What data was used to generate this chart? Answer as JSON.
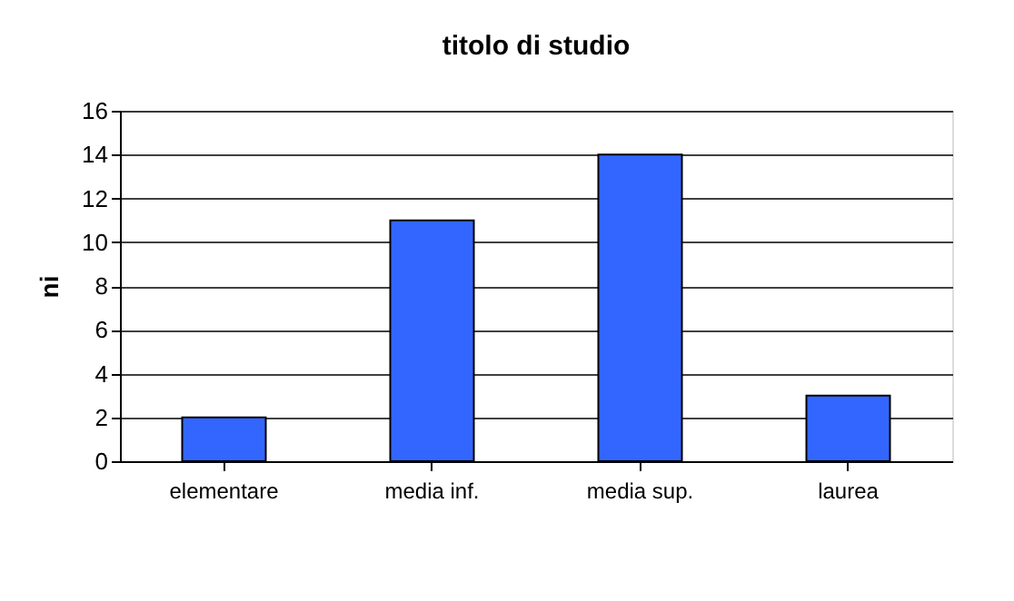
{
  "chart_data": {
    "type": "bar",
    "title": "titolo di studio",
    "ylabel": "ni",
    "categories": [
      "elementare",
      "media inf.",
      "media sup.",
      "laurea"
    ],
    "values": [
      2,
      11,
      14,
      3
    ],
    "color": "#3366ff",
    "ylim": [
      0,
      16
    ],
    "yticks": [
      0,
      2,
      4,
      6,
      8,
      10,
      12,
      14,
      16
    ],
    "grid": "y"
  }
}
